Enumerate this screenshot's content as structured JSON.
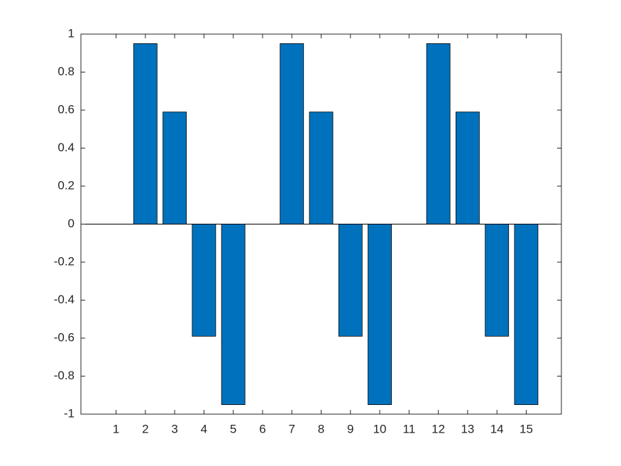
{
  "chart_data": {
    "type": "bar",
    "x": [
      1,
      2,
      3,
      4,
      5,
      6,
      7,
      8,
      9,
      10,
      11,
      12,
      13,
      14,
      15
    ],
    "values": [
      0,
      0.95,
      0.59,
      -0.59,
      -0.95,
      0,
      0.95,
      0.59,
      -0.59,
      -0.95,
      0,
      0.95,
      0.59,
      -0.59,
      -0.95
    ],
    "color": "#0072bd",
    "xlim": [
      -0.2,
      16.2
    ],
    "xticks": [
      1,
      2,
      3,
      4,
      5,
      6,
      7,
      8,
      9,
      10,
      11,
      12,
      13,
      14,
      15
    ],
    "ylim": [
      -1,
      1
    ],
    "yticks": [
      -1,
      -0.8,
      -0.6,
      -0.4,
      -0.2,
      0,
      0.2,
      0.4,
      0.6,
      0.8,
      1
    ]
  }
}
